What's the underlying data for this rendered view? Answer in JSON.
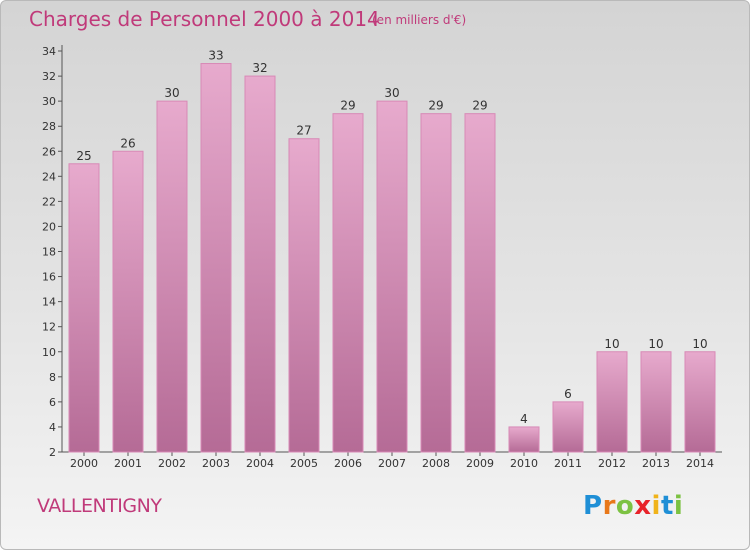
{
  "title": "Charges de Personnel 2000 à 2014",
  "subtitle": "(en milliers d'€)",
  "city": "VALLENTIGNY",
  "logo": {
    "letters": [
      {
        "ch": "P",
        "color": "#1f8fd6"
      },
      {
        "ch": "r",
        "color": "#e8781a"
      },
      {
        "ch": "o",
        "color": "#7cc242"
      },
      {
        "ch": "x",
        "color": "#e8232a"
      },
      {
        "ch": "i",
        "color": "#f0b31a"
      },
      {
        "ch": "t",
        "color": "#1f8fd6"
      },
      {
        "ch": "i",
        "color": "#7cc242"
      }
    ]
  },
  "colors": {
    "title": "#c03a7a",
    "bar_top": "#e7aacd",
    "bar_bottom": "#b56b96",
    "bar_stroke": "#d889b6",
    "label": "#333333"
  },
  "chart_data": {
    "type": "bar",
    "categories": [
      "2000",
      "2001",
      "2002",
      "2003",
      "2004",
      "2005",
      "2006",
      "2007",
      "2008",
      "2009",
      "2010",
      "2011",
      "2012",
      "2013",
      "2014"
    ],
    "values": [
      25,
      26,
      30,
      33,
      32,
      27,
      29,
      30,
      29,
      29,
      4,
      6,
      10,
      10,
      10
    ],
    "ylim": [
      2,
      34
    ],
    "yticks": [
      2,
      4,
      6,
      8,
      10,
      12,
      14,
      16,
      18,
      20,
      22,
      24,
      26,
      28,
      30,
      32,
      34
    ],
    "grid": false,
    "data_labels": true
  }
}
